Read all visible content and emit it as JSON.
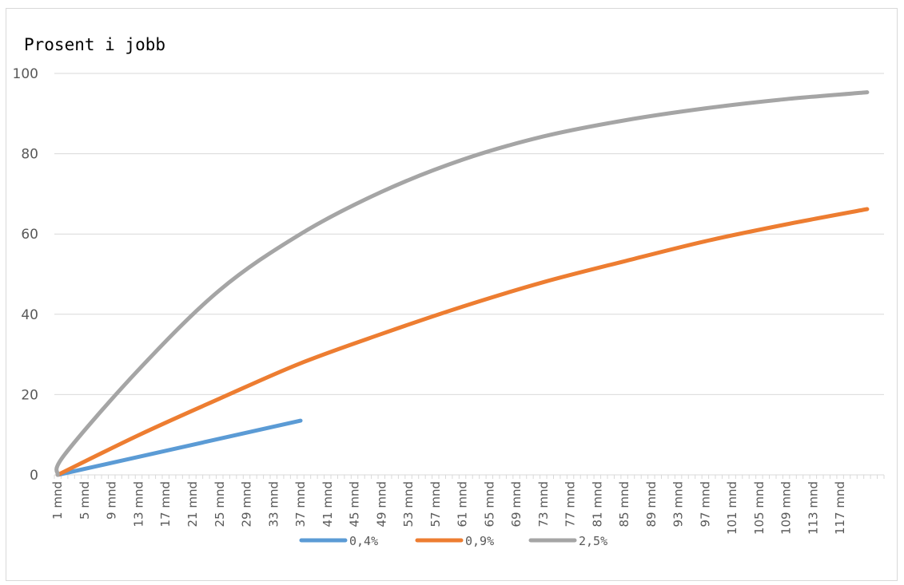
{
  "chart_data": {
    "type": "line",
    "title": "Prosent i jobb",
    "xlabel": "",
    "ylabel": "",
    "ylim": [
      0,
      100
    ],
    "yticks": [
      0,
      20,
      40,
      60,
      80,
      100
    ],
    "grid": "horizontal",
    "legend_position": "bottom",
    "x_tick_labels": [
      "1 mnd",
      "5 mnd",
      "9 mnd",
      "13 mnd",
      "17 mnd",
      "21 mnd",
      "25 mnd",
      "29 mnd",
      "33 mnd",
      "37 mnd",
      "41 mnd",
      "45 mnd",
      "49 mnd",
      "53 mnd",
      "57 mnd",
      "61 mnd",
      "65 mnd",
      "69 mnd",
      "73 mnd",
      "77 mnd",
      "81 mnd",
      "85 mnd",
      "89 mnd",
      "93 mnd",
      "97 mnd",
      "101 mnd",
      "105 mnd",
      "109 mnd",
      "113 mnd",
      "117 mnd"
    ],
    "series": [
      {
        "name": "0,4%",
        "color": "#5b9bd5",
        "x": [
          1,
          37
        ],
        "y": [
          0,
          13.5
        ]
      },
      {
        "name": "0,9%",
        "color": "#ed7d31",
        "x": [
          1,
          13,
          25,
          37,
          49,
          61,
          73,
          85,
          97,
          109,
          121
        ],
        "y": [
          0,
          9.9,
          19.0,
          27.8,
          35.1,
          41.9,
          48.0,
          53.2,
          58.2,
          62.4,
          66.2
        ]
      },
      {
        "name": "2,5%",
        "color": "#a5a5a5",
        "x": [
          1,
          2,
          13,
          25,
          37,
          49,
          61,
          73,
          85,
          97,
          109,
          121
        ],
        "y": [
          0,
          5,
          26.2,
          46.0,
          60.0,
          70.5,
          78.5,
          84.3,
          88.3,
          91.3,
          93.6,
          95.3
        ]
      }
    ]
  }
}
